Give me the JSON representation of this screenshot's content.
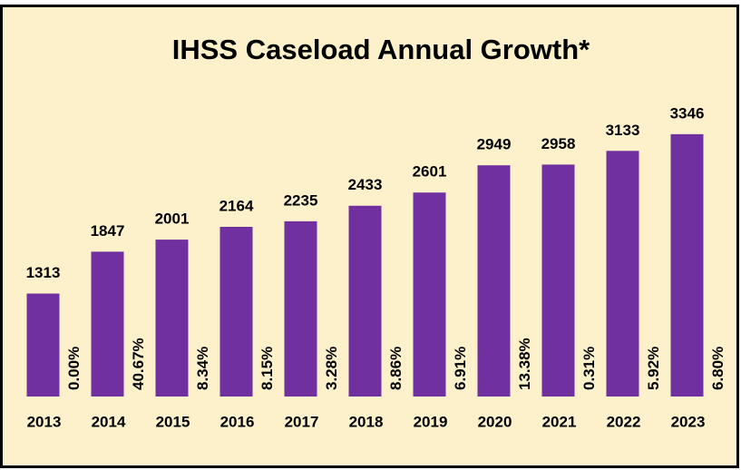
{
  "chart_data": {
    "type": "bar",
    "title": "IHSS Caseload Annual Growth*",
    "categories": [
      "2013",
      "2014",
      "2015",
      "2016",
      "2017",
      "2018",
      "2019",
      "2020",
      "2021",
      "2022",
      "2023"
    ],
    "values": [
      1313,
      1847,
      2001,
      2164,
      2235,
      2433,
      2601,
      2949,
      2958,
      3133,
      3346
    ],
    "growth_labels": [
      "0.00%",
      "40.67%",
      "8.34%",
      "8.15%",
      "3.28%",
      "8.86%",
      "6.91%",
      "13.38%",
      "0.31%",
      "5.92%",
      "6.80%"
    ],
    "color": "#7030a0",
    "ylim": [
      0,
      3900
    ]
  }
}
